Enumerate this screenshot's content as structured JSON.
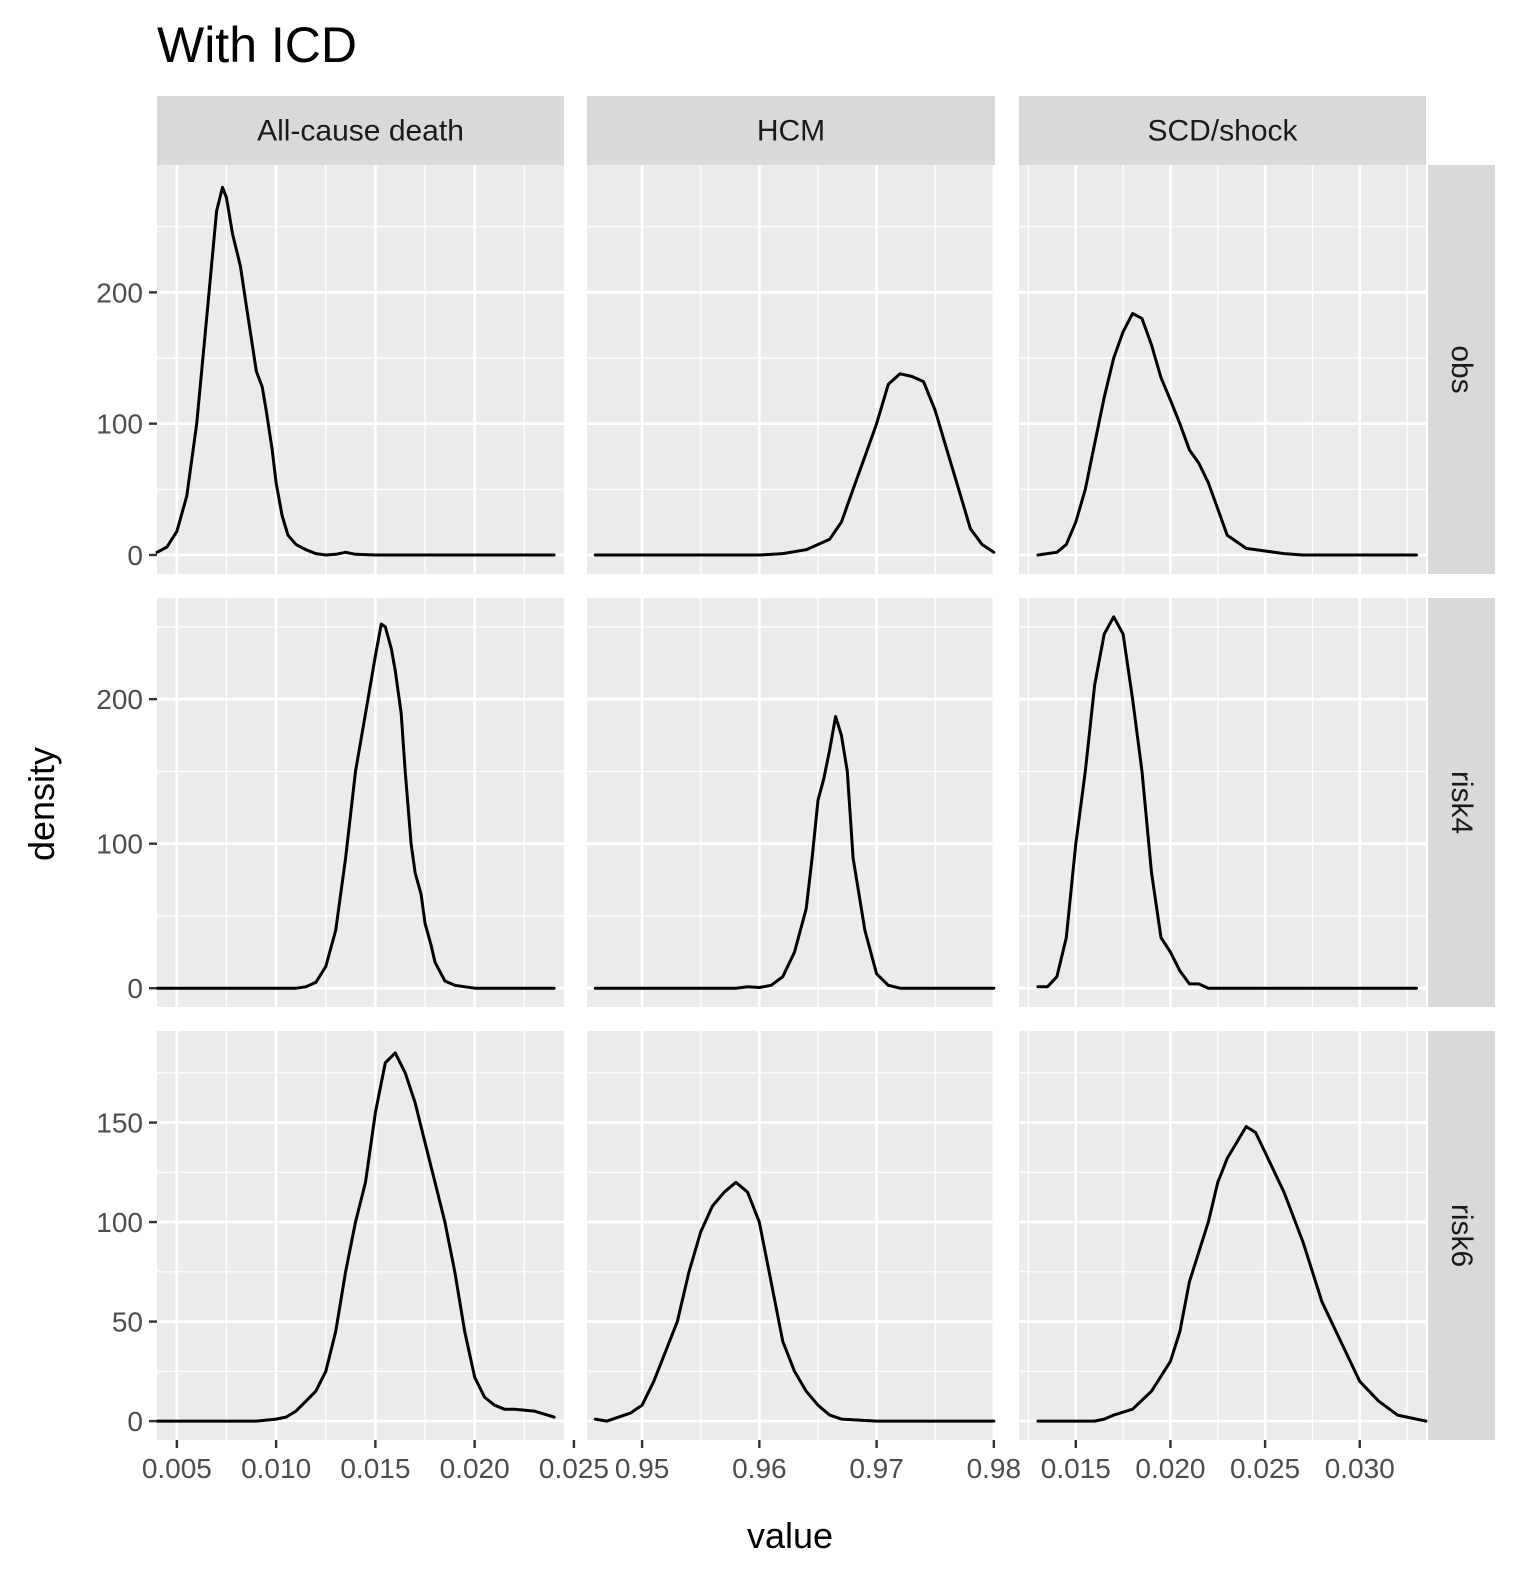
{
  "chart_data": {
    "type": "line",
    "title": "With ICD",
    "xlabel": "value",
    "ylabel": "density",
    "grid": true,
    "facet_columns": [
      {
        "label": "All-cause death",
        "xlim": [
          0.004,
          0.0245
        ],
        "x_ticks": [
          0.005,
          0.01,
          0.015,
          0.02,
          0.025
        ],
        "x_tick_labels": [
          "0.005",
          "0.010",
          "0.015",
          "0.020",
          "0.025"
        ],
        "x_minor": [
          0.0075,
          0.0125,
          0.0175,
          0.0225
        ]
      },
      {
        "label": "HCM",
        "xlim": [
          0.9453,
          0.9801
        ],
        "x_ticks": [
          0.95,
          0.96,
          0.97,
          0.98
        ],
        "x_tick_labels": [
          "0.95",
          "0.96",
          "0.97",
          "0.98"
        ],
        "x_minor": [
          0.955,
          0.965,
          0.975
        ]
      },
      {
        "label": "SCD/shock",
        "xlim": [
          0.012,
          0.0335
        ],
        "x_ticks": [
          0.015,
          0.02,
          0.025,
          0.03
        ],
        "x_tick_labels": [
          "0.015",
          "0.020",
          "0.025",
          "0.030"
        ],
        "x_minor": [
          0.0125,
          0.0175,
          0.0225,
          0.0275,
          0.0325
        ]
      }
    ],
    "facet_rows": [
      {
        "label": "obs",
        "ylim": [
          -14.5,
          297
        ],
        "y_ticks": [
          0,
          100,
          200
        ],
        "y_tick_labels": [
          "0",
          "100",
          "200"
        ],
        "y_minor": [
          50,
          150,
          250
        ]
      },
      {
        "label": "risk4",
        "ylim": [
          -13,
          270
        ],
        "y_ticks": [
          0,
          100,
          200
        ],
        "y_tick_labels": [
          "0",
          "100",
          "200"
        ],
        "y_minor": [
          50,
          150,
          250
        ]
      },
      {
        "label": "risk6",
        "ylim": [
          -9.5,
          196
        ],
        "y_ticks": [
          0,
          50,
          100,
          150
        ],
        "y_tick_labels": [
          "0",
          "50",
          "100",
          "150"
        ],
        "y_minor": [
          25,
          75,
          125,
          175
        ]
      }
    ],
    "panels": [
      {
        "row": "obs",
        "col": "All-cause death",
        "series": [
          [
            0.004,
            2
          ],
          [
            0.0045,
            6
          ],
          [
            0.005,
            18
          ],
          [
            0.0055,
            45
          ],
          [
            0.006,
            100
          ],
          [
            0.0065,
            180
          ],
          [
            0.007,
            262
          ],
          [
            0.0073,
            280
          ],
          [
            0.0075,
            272
          ],
          [
            0.0078,
            245
          ],
          [
            0.0082,
            220
          ],
          [
            0.0085,
            190
          ],
          [
            0.0088,
            160
          ],
          [
            0.009,
            140
          ],
          [
            0.0093,
            128
          ],
          [
            0.0095,
            110
          ],
          [
            0.0098,
            80
          ],
          [
            0.01,
            55
          ],
          [
            0.0103,
            30
          ],
          [
            0.0106,
            15
          ],
          [
            0.011,
            8
          ],
          [
            0.0115,
            4
          ],
          [
            0.012,
            1
          ],
          [
            0.0125,
            0
          ],
          [
            0.013,
            0.5
          ],
          [
            0.0135,
            2
          ],
          [
            0.014,
            0.5
          ],
          [
            0.015,
            0
          ],
          [
            0.017,
            0
          ],
          [
            0.02,
            0
          ],
          [
            0.022,
            0
          ],
          [
            0.024,
            0
          ]
        ]
      },
      {
        "row": "obs",
        "col": "HCM",
        "series": [
          [
            0.946,
            0
          ],
          [
            0.95,
            0
          ],
          [
            0.955,
            0
          ],
          [
            0.96,
            0
          ],
          [
            0.962,
            1
          ],
          [
            0.964,
            4
          ],
          [
            0.966,
            12
          ],
          [
            0.967,
            25
          ],
          [
            0.968,
            50
          ],
          [
            0.969,
            75
          ],
          [
            0.97,
            100
          ],
          [
            0.971,
            130
          ],
          [
            0.972,
            138
          ],
          [
            0.973,
            136
          ],
          [
            0.974,
            132
          ],
          [
            0.975,
            110
          ],
          [
            0.976,
            80
          ],
          [
            0.977,
            50
          ],
          [
            0.978,
            20
          ],
          [
            0.979,
            8
          ],
          [
            0.98,
            2
          ]
        ]
      },
      {
        "row": "obs",
        "col": "SCD/shock",
        "series": [
          [
            0.013,
            0
          ],
          [
            0.0135,
            1
          ],
          [
            0.014,
            2
          ],
          [
            0.0145,
            8
          ],
          [
            0.015,
            25
          ],
          [
            0.0155,
            50
          ],
          [
            0.016,
            85
          ],
          [
            0.0165,
            120
          ],
          [
            0.017,
            150
          ],
          [
            0.0175,
            170
          ],
          [
            0.018,
            184
          ],
          [
            0.0185,
            180
          ],
          [
            0.019,
            160
          ],
          [
            0.0195,
            135
          ],
          [
            0.02,
            118
          ],
          [
            0.0205,
            100
          ],
          [
            0.021,
            80
          ],
          [
            0.0215,
            70
          ],
          [
            0.022,
            55
          ],
          [
            0.0225,
            35
          ],
          [
            0.023,
            15
          ],
          [
            0.0235,
            10
          ],
          [
            0.024,
            5
          ],
          [
            0.025,
            3
          ],
          [
            0.026,
            1
          ],
          [
            0.027,
            0
          ],
          [
            0.03,
            0
          ],
          [
            0.033,
            0
          ]
        ]
      },
      {
        "row": "risk4",
        "col": "All-cause death",
        "series": [
          [
            0.004,
            0
          ],
          [
            0.006,
            0
          ],
          [
            0.008,
            0
          ],
          [
            0.01,
            0
          ],
          [
            0.011,
            0
          ],
          [
            0.0115,
            1
          ],
          [
            0.012,
            4
          ],
          [
            0.0125,
            15
          ],
          [
            0.013,
            40
          ],
          [
            0.0135,
            90
          ],
          [
            0.014,
            150
          ],
          [
            0.0145,
            190
          ],
          [
            0.015,
            230
          ],
          [
            0.0153,
            252
          ],
          [
            0.0155,
            250
          ],
          [
            0.0158,
            235
          ],
          [
            0.016,
            220
          ],
          [
            0.0163,
            190
          ],
          [
            0.0165,
            150
          ],
          [
            0.0168,
            100
          ],
          [
            0.017,
            80
          ],
          [
            0.0173,
            65
          ],
          [
            0.0175,
            45
          ],
          [
            0.0178,
            30
          ],
          [
            0.018,
            18
          ],
          [
            0.0185,
            5
          ],
          [
            0.019,
            2
          ],
          [
            0.02,
            0
          ],
          [
            0.022,
            0
          ],
          [
            0.024,
            0
          ]
        ]
      },
      {
        "row": "risk4",
        "col": "HCM",
        "series": [
          [
            0.946,
            0
          ],
          [
            0.95,
            0
          ],
          [
            0.955,
            0
          ],
          [
            0.958,
            0
          ],
          [
            0.959,
            1
          ],
          [
            0.96,
            0.5
          ],
          [
            0.961,
            2
          ],
          [
            0.962,
            8
          ],
          [
            0.963,
            25
          ],
          [
            0.964,
            55
          ],
          [
            0.9645,
            90
          ],
          [
            0.965,
            130
          ],
          [
            0.9655,
            145
          ],
          [
            0.966,
            165
          ],
          [
            0.9665,
            188
          ],
          [
            0.967,
            175
          ],
          [
            0.9675,
            150
          ],
          [
            0.968,
            90
          ],
          [
            0.969,
            40
          ],
          [
            0.97,
            10
          ],
          [
            0.971,
            2
          ],
          [
            0.972,
            0
          ],
          [
            0.975,
            0
          ],
          [
            0.98,
            0
          ]
        ]
      },
      {
        "row": "risk4",
        "col": "SCD/shock",
        "series": [
          [
            0.013,
            1
          ],
          [
            0.0135,
            1
          ],
          [
            0.014,
            8
          ],
          [
            0.0145,
            35
          ],
          [
            0.015,
            100
          ],
          [
            0.0155,
            150
          ],
          [
            0.016,
            210
          ],
          [
            0.0165,
            245
          ],
          [
            0.017,
            257
          ],
          [
            0.0175,
            245
          ],
          [
            0.018,
            200
          ],
          [
            0.0185,
            150
          ],
          [
            0.019,
            80
          ],
          [
            0.0195,
            35
          ],
          [
            0.02,
            25
          ],
          [
            0.0205,
            12
          ],
          [
            0.021,
            3
          ],
          [
            0.0215,
            3
          ],
          [
            0.022,
            0
          ],
          [
            0.025,
            0
          ],
          [
            0.03,
            0
          ],
          [
            0.033,
            0
          ]
        ]
      },
      {
        "row": "risk6",
        "col": "All-cause death",
        "series": [
          [
            0.004,
            0
          ],
          [
            0.006,
            0
          ],
          [
            0.008,
            0
          ],
          [
            0.009,
            0
          ],
          [
            0.0095,
            0.5
          ],
          [
            0.01,
            1
          ],
          [
            0.0105,
            2
          ],
          [
            0.011,
            5
          ],
          [
            0.0115,
            10
          ],
          [
            0.012,
            15
          ],
          [
            0.0125,
            25
          ],
          [
            0.013,
            45
          ],
          [
            0.0135,
            75
          ],
          [
            0.014,
            100
          ],
          [
            0.0145,
            120
          ],
          [
            0.015,
            155
          ],
          [
            0.0155,
            180
          ],
          [
            0.016,
            185
          ],
          [
            0.0165,
            175
          ],
          [
            0.017,
            160
          ],
          [
            0.0175,
            140
          ],
          [
            0.018,
            120
          ],
          [
            0.0185,
            100
          ],
          [
            0.019,
            75
          ],
          [
            0.0195,
            45
          ],
          [
            0.02,
            22
          ],
          [
            0.0205,
            12
          ],
          [
            0.021,
            8
          ],
          [
            0.0215,
            6
          ],
          [
            0.022,
            6
          ],
          [
            0.023,
            5
          ],
          [
            0.024,
            2
          ]
        ]
      },
      {
        "row": "risk6",
        "col": "HCM",
        "series": [
          [
            0.946,
            1
          ],
          [
            0.947,
            0
          ],
          [
            0.948,
            2
          ],
          [
            0.949,
            4
          ],
          [
            0.95,
            8
          ],
          [
            0.951,
            20
          ],
          [
            0.952,
            35
          ],
          [
            0.953,
            50
          ],
          [
            0.954,
            75
          ],
          [
            0.955,
            95
          ],
          [
            0.956,
            108
          ],
          [
            0.957,
            115
          ],
          [
            0.958,
            120
          ],
          [
            0.959,
            115
          ],
          [
            0.96,
            100
          ],
          [
            0.961,
            70
          ],
          [
            0.962,
            40
          ],
          [
            0.963,
            25
          ],
          [
            0.964,
            15
          ],
          [
            0.965,
            8
          ],
          [
            0.966,
            3
          ],
          [
            0.967,
            1
          ],
          [
            0.97,
            0
          ],
          [
            0.975,
            0
          ],
          [
            0.98,
            0
          ]
        ]
      },
      {
        "row": "risk6",
        "col": "SCD/shock",
        "series": [
          [
            0.013,
            0
          ],
          [
            0.015,
            0
          ],
          [
            0.016,
            0
          ],
          [
            0.0165,
            1
          ],
          [
            0.017,
            3
          ],
          [
            0.018,
            6
          ],
          [
            0.019,
            15
          ],
          [
            0.02,
            30
          ],
          [
            0.0205,
            45
          ],
          [
            0.021,
            70
          ],
          [
            0.022,
            100
          ],
          [
            0.0225,
            120
          ],
          [
            0.023,
            132
          ],
          [
            0.0235,
            140
          ],
          [
            0.024,
            148
          ],
          [
            0.0245,
            145
          ],
          [
            0.025,
            135
          ],
          [
            0.026,
            115
          ],
          [
            0.027,
            90
          ],
          [
            0.028,
            60
          ],
          [
            0.029,
            40
          ],
          [
            0.03,
            20
          ],
          [
            0.031,
            10
          ],
          [
            0.032,
            3
          ],
          [
            0.033,
            1
          ],
          [
            0.0335,
            0
          ]
        ]
      }
    ]
  }
}
